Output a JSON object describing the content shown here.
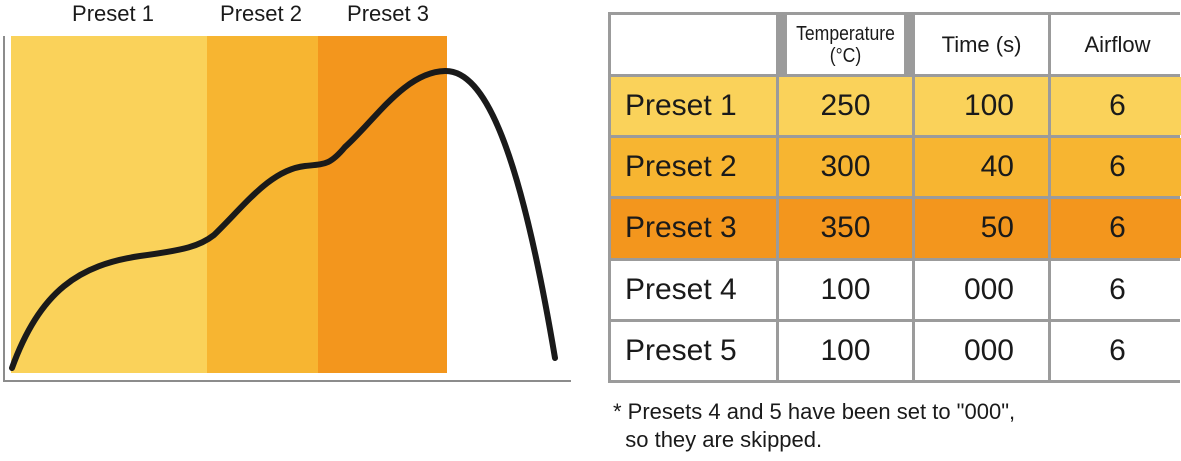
{
  "profile": {
    "bands": [
      {
        "label": "Preset 1",
        "color": "#FAD25A"
      },
      {
        "label": "Preset 2",
        "color": "#F7B531"
      },
      {
        "label": "Preset 3",
        "color": "#F3961D"
      }
    ],
    "curve_color": "#1a1a1a",
    "axis_color": "#8c8c8c"
  },
  "table": {
    "headers": [
      "",
      "Temperature\n(°C)",
      "Time (s)",
      "Airflow"
    ],
    "rows": [
      {
        "name": "Preset 1",
        "temperature": "250",
        "time": "100",
        "airflow": "6",
        "color": "#FAD25A"
      },
      {
        "name": "Preset 2",
        "temperature": "300",
        "time": "40",
        "airflow": "6",
        "color": "#F7B531"
      },
      {
        "name": "Preset 3",
        "temperature": "350",
        "time": "50",
        "airflow": "6",
        "color": "#F3961D"
      },
      {
        "name": "Preset 4",
        "temperature": "100",
        "time": "000",
        "airflow": "6",
        "color": "#FFFFFF"
      },
      {
        "name": "Preset 5",
        "temperature": "100",
        "time": "000",
        "airflow": "6",
        "color": "#FFFFFF"
      }
    ],
    "border_color": "#9b9b9b"
  },
  "footnote": {
    "line1": "* Presets 4 and 5 have been set to \"000\",",
    "line2": "so they are skipped."
  }
}
